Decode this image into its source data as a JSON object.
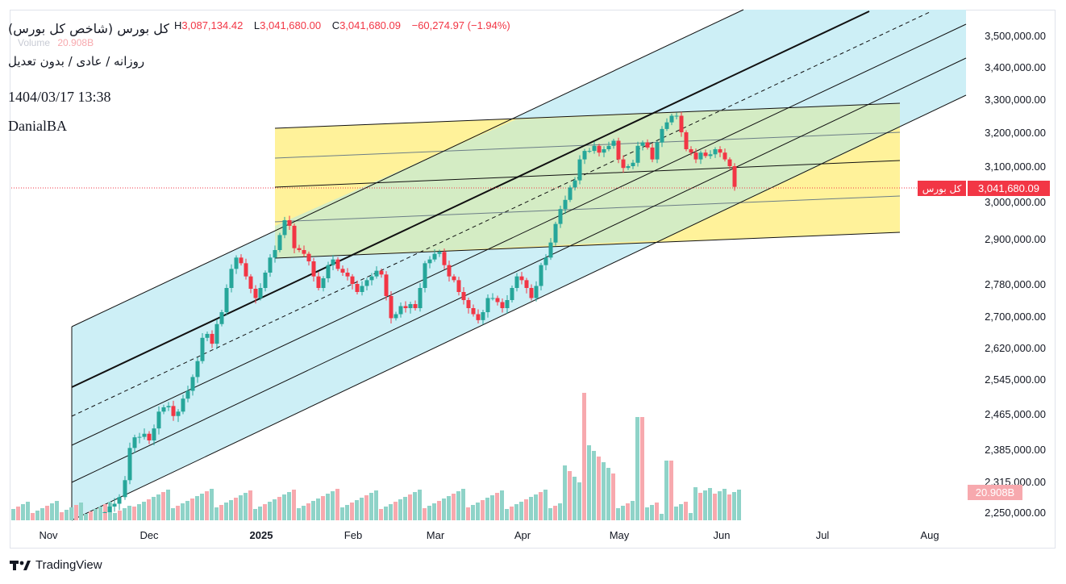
{
  "legend": {
    "symbol_title": "کل بورس (شاخص کل بورس)",
    "subtitle": "روزانه / عادی / بدون تعدیل",
    "datetime": "1404/03/17 13:38",
    "author": "DanialBA",
    "ohlc": {
      "h_label": "H",
      "h_value": "3,087,134.42",
      "l_label": "L",
      "l_value": "3,041,680.00",
      "c_label": "C",
      "c_value": "3,041,680.09",
      "change": "−60,274.97 (−1.94%)"
    },
    "volume_label": "Volume",
    "volume_value": "20.908B"
  },
  "price_axis": {
    "ticks": [
      "3,500,000.00",
      "3,400,000.00",
      "3,300,000.00",
      "3,200,000.00",
      "3,100,000.00",
      "3,000,000.00",
      "2,900,000.00",
      "2,780,000.00",
      "2,700,000.00",
      "2,620,000.00",
      "2,545,000.00",
      "2,465,000.00",
      "2,385,000.00",
      "2,315,000.00",
      "2,250,000.00"
    ],
    "last_price_label": "3,041,680.09",
    "last_price_name": "کل بورس",
    "volume_badge": "20.908B"
  },
  "time_axis": {
    "labels": [
      "Nov",
      "Dec",
      "2025",
      "Feb",
      "Mar",
      "Apr",
      "May",
      "Jun",
      "Jul",
      "Aug"
    ]
  },
  "colors": {
    "up": "#26a69a",
    "down": "#f23645",
    "vol_up": "#8fd3c8",
    "vol_down": "#f7a9ae",
    "channel_fill": "#cdeff6",
    "flat_channel_fill": "#fff29a",
    "overlap_fill": "#d4ecc4"
  },
  "brand": {
    "name": "TradingView"
  }
}
